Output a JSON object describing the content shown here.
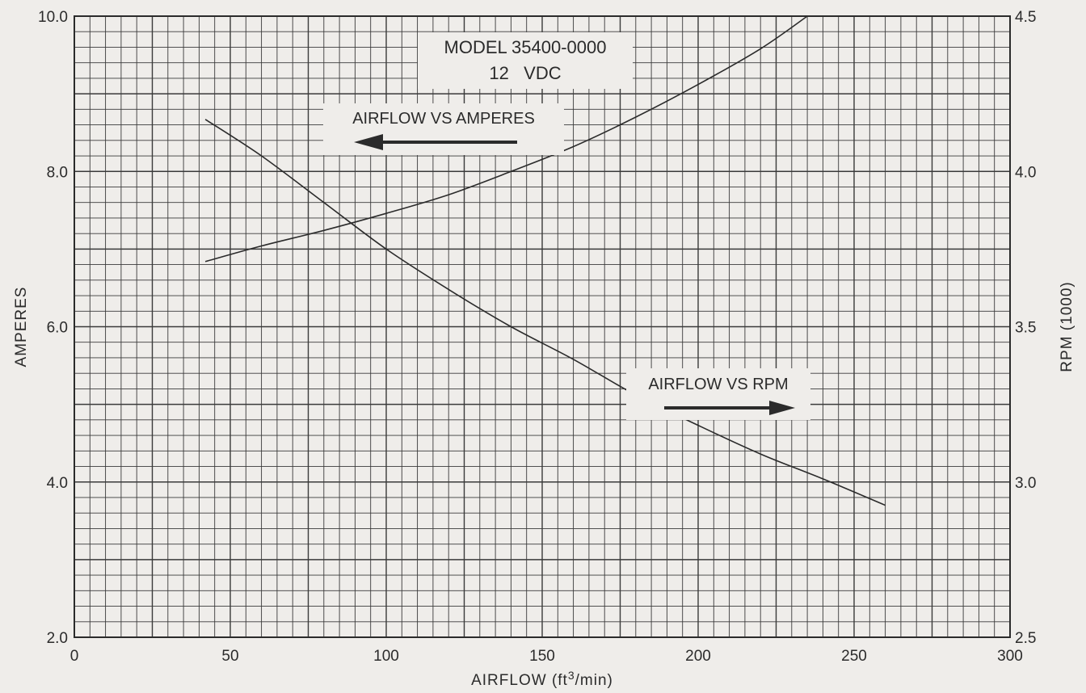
{
  "colors": {
    "background": "#efedea",
    "grid": "#3a3a3a",
    "ink": "#2b2b2b"
  },
  "chart_data": {
    "type": "line",
    "title": "MODEL 35400-0000",
    "subtitle": "12   VDC",
    "xlabel": "AIRFLOW (ft3/min)",
    "xlabel_parts": {
      "pre": "AIRFLOW (ft",
      "sup": "3",
      "post": "/min)"
    },
    "ylabel_left": "AMPERES",
    "ylabel_right": "RPM (1000)",
    "xlim": [
      0,
      300
    ],
    "ylim_left": [
      2.0,
      10.0
    ],
    "ylim_right": [
      2.5,
      4.5
    ],
    "x_ticks": [
      "0",
      "50",
      "100",
      "150",
      "200",
      "250",
      "300"
    ],
    "y_left_ticks": [
      "2.0",
      "4.0",
      "6.0",
      "8.0",
      "10.0"
    ],
    "y_right_ticks": [
      "2.5",
      "3.0",
      "3.5",
      "4.0",
      "4.5"
    ],
    "grid": true,
    "grid_minor_x_step": 5,
    "grid_minor_y_step": 0.2,
    "series": [
      {
        "name": "AIRFLOW VS AMPERES",
        "axis": "left",
        "x": [
          42,
          60,
          80,
          100,
          120,
          140,
          160,
          180,
          200,
          220,
          240,
          260
        ],
        "y": [
          8.67,
          8.2,
          7.6,
          7.0,
          6.48,
          6.0,
          5.58,
          5.12,
          4.73,
          4.36,
          4.04,
          3.7
        ]
      },
      {
        "name": "AIRFLOW VS RPM",
        "axis": "right",
        "x": [
          42,
          60,
          80,
          100,
          120,
          140,
          160,
          180,
          200,
          220,
          235
        ],
        "y": [
          3.71,
          3.76,
          3.81,
          3.865,
          3.925,
          4.0,
          4.08,
          4.175,
          4.28,
          4.395,
          4.5
        ]
      }
    ],
    "annotations": {
      "model": "MODEL 35400-0000",
      "voltage": "12   VDC",
      "amperes_label": "AIRFLOW VS AMPERES",
      "rpm_label": "AIRFLOW VS RPM"
    }
  }
}
